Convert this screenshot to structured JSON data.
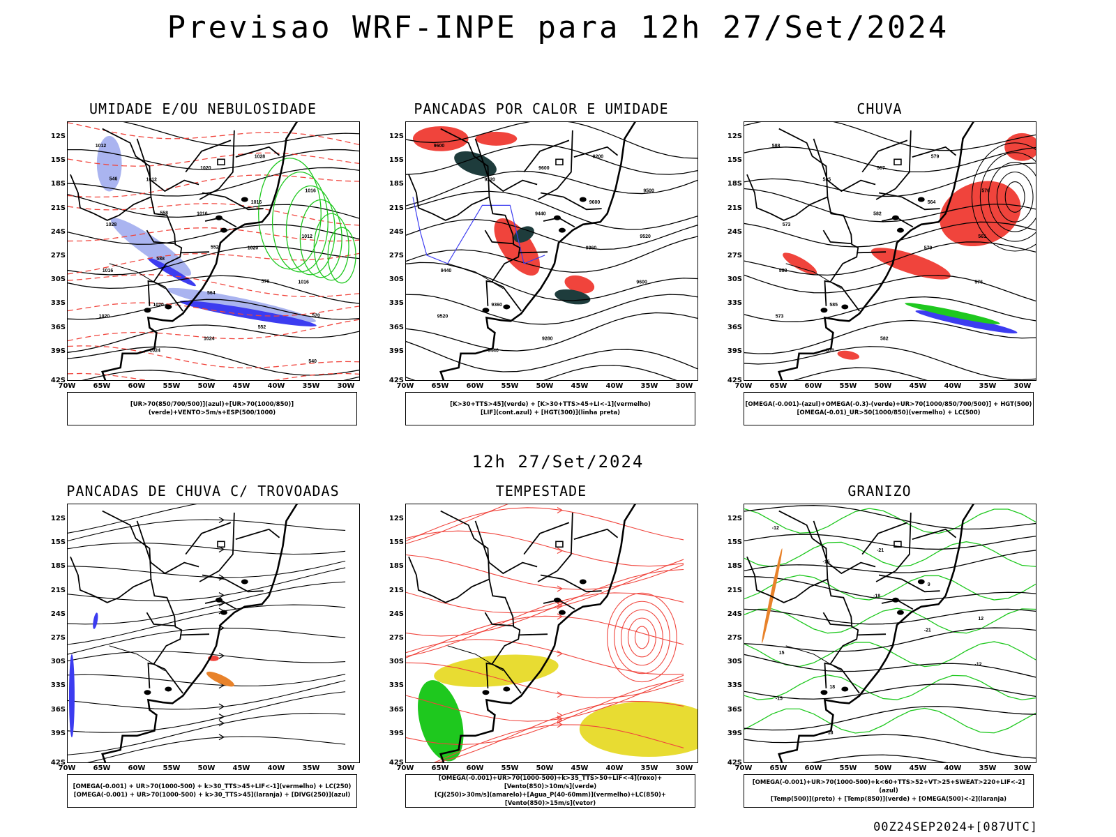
{
  "header": {
    "title": "Previsao WRF-INPE  para 12h 27/Set/2024"
  },
  "subtitle": "12h 27/Set/2024",
  "footer": "00Z24SEP2024+[087UTC]",
  "axes": {
    "lat_labels": [
      "12S",
      "15S",
      "18S",
      "21S",
      "24S",
      "27S",
      "30S",
      "33S",
      "36S",
      "39S",
      "42S"
    ],
    "lon_labels": [
      "70W",
      "65W",
      "60W",
      "55W",
      "50W",
      "45W",
      "40W",
      "35W",
      "30W"
    ]
  },
  "colors": {
    "red": "#f0443c",
    "green": "#1ec81e",
    "blue": "#3c3cf0",
    "lightblue": "#aab4f0",
    "yellow": "#e8dc32",
    "orange": "#e8822a",
    "darkteal": "#1e3c3c"
  },
  "panels": [
    {
      "title": "UMIDADE E/OU NEBULOSIDADE",
      "legend_lines": [
        "[UR>70(850/700/500)](azul)+[UR>70(1000/850)](verde)+VENTO>5m/s+ESP(500/1000)"
      ],
      "labels": [
        "1012",
        "1012",
        "1016",
        "1020",
        "1016",
        "1020",
        "1024",
        "1020",
        "1016",
        "1012",
        "1016",
        "1020",
        "1024",
        "1028",
        "1016",
        "1028",
        "588",
        "564",
        "552",
        "540",
        "546",
        "558",
        "552",
        "576",
        "570"
      ]
    },
    {
      "title": "PANCADAS POR CALOR E UMIDADE",
      "legend_lines": [
        "[K>30+TTS>45](verde) + [K>30+TTS>45+LI<-1](vermelho)",
        "[LIF](cont.azul) + [HGT(300)](linha preta)"
      ],
      "labels": [
        "9600",
        "9520",
        "9440",
        "9360",
        "9600",
        "9520",
        "9440",
        "9600",
        "9600",
        "9520",
        "9440",
        "9360",
        "9280",
        "9200",
        "9500"
      ]
    },
    {
      "title": "CHUVA",
      "legend_lines": [
        "[OMEGA(-0.001)-(azul)+OMEGA(-0.3)-(verde)+UR>70(1000/850/700/500)] + HGT(500)",
        "[OMEGA(-0.01)_UR>50(1000/850)(vermelho) + LC(500)"
      ],
      "labels": [
        "588",
        "585",
        "582",
        "579",
        "576",
        "573",
        "570",
        "567",
        "564",
        "561",
        "588",
        "585",
        "582",
        "579",
        "576",
        "573"
      ]
    },
    {
      "title": "PANCADAS DE CHUVA C/ TROVOADAS",
      "legend_lines": [
        "[OMEGA(-0.001) + UR>70(1000-500) + k>30_TTS>45+LIF<-1](vermelho) + LC(250)",
        "[OMEGA(-0.001) + UR>70(1000-500) + k>30_TTS>45](laranja) + [DIVG(250)](azul)"
      ],
      "labels": []
    },
    {
      "title": "TEMPESTADE",
      "legend_lines": [
        "[OMEGA(-0.001)+UR>70(1000-500)+k>35_TTS>50+LIF<-4](roxo)+[Vento(850)>10m/s](verde)",
        "[CJ(250)>30m/s](amarelo)+[Agua_P(40-60mm)](vermelho)+LC(850)+[Vento(850)>15m/s](vetor)"
      ],
      "labels": []
    },
    {
      "title": "GRANIZO",
      "legend_lines": [
        "[OMEGA(-0.001)+UR>70(1000-500)+k<60+TTS>52+VT>25+SWEAT>220+LIF<-2](azul)",
        "[Temp(500)](preto) + [Temp(850)](verde) + [OMEGA(500)<-2](laranja)"
      ],
      "labels": [
        "-12",
        "-15",
        "-18",
        "-21",
        "-12",
        "-15",
        "-18",
        "-21",
        "9",
        "12",
        "15",
        "18"
      ]
    }
  ]
}
